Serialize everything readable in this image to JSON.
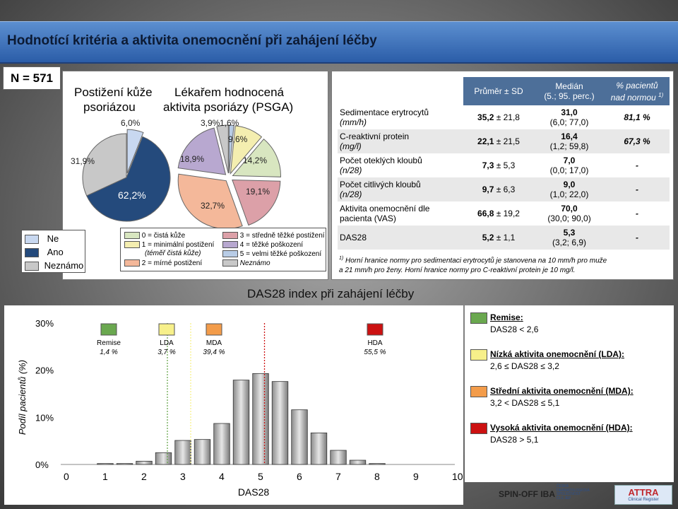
{
  "title": "Hodnotící kritéria a aktivita onemocnění při zahájení léčby",
  "n_label": "N = 571",
  "colors": {
    "ne": "#c8d8f0",
    "ano": "#244a7c",
    "nezname": "#c8c8c8",
    "p0": "#d8e6c0",
    "p1": "#f4eeb0",
    "p2": "#f4b89a",
    "p3": "#dca0a8",
    "p4": "#b8a8d0",
    "p5": "#b8cce6",
    "remise": "#6aa84f",
    "lda": "#f7f08a",
    "mda": "#f39c4a",
    "hda": "#cc1111"
  },
  "pie1": {
    "title_line1": "Postižení kůže",
    "title_line2": "psoriázou",
    "labels": [
      "6,0%",
      "62,2%",
      "31,9%"
    ]
  },
  "pie2": {
    "title_line1": "Lékařem hodnocená",
    "title_line2": "aktivita psoriázy (PSGA)",
    "labels": [
      "3,9%",
      "1,6%",
      "9,6%",
      "14,2%",
      "19,1%",
      "32,7%",
      "18,9%"
    ]
  },
  "legend1": [
    "Ne",
    "Ano",
    "Neznámo"
  ],
  "legend2": {
    "items": [
      "0 = čistá kůže",
      "1 = minimální postižení",
      "(téměř čistá kůže)",
      "2 = mírné postižení",
      "3 = středně těžké postižení",
      "4 = těžké poškození",
      "5 = velmi těžké poškození",
      "Neznámo"
    ]
  },
  "table": {
    "headers": [
      "Průměr ± SD",
      "Medián",
      "(5.; 95. perc.)",
      "% pacientů",
      "nad normou"
    ],
    "header_sup": "1)",
    "rows": [
      {
        "name": "Sedimentace erytrocytů",
        "unit": "(mm/h)",
        "mean": "35,2",
        "sd": "± 21,8",
        "median": "31,0",
        "perc": "(6,0; 77,0)",
        "pct": "81,1 %"
      },
      {
        "name": "C-reaktivní protein",
        "unit": "(mg/l)",
        "mean": "22,1",
        "sd": "± 21,5",
        "median": "16,4",
        "perc": "(1,2; 59,8)",
        "pct": "67,3 %"
      },
      {
        "name": "Počet oteklých kloubů",
        "unit": "(n/28)",
        "mean": "7,3",
        "sd": "± 5,3",
        "median": "7,0",
        "perc": "(0,0; 17,0)",
        "pct": "-"
      },
      {
        "name": "Počet citlivých kloubů",
        "unit": "(n/28)",
        "mean": "9,7",
        "sd": "± 6,3",
        "median": "9,0",
        "perc": "(1,0; 22,0)",
        "pct": "-"
      },
      {
        "name": "Aktivita onemocnění dle",
        "unit": "pacienta (VAS)",
        "mean": "66,8",
        "sd": "± 19,2",
        "median": "70,0",
        "perc": "(30,0; 90,0)",
        "pct": "-"
      },
      {
        "name": "DAS28",
        "unit": "",
        "mean": "5,2",
        "sd": "± 1,1",
        "median": "5,3",
        "perc": "(3,2; 6,9)",
        "pct": "-"
      }
    ],
    "footnote_sup": "1)",
    "footnote_line1": "Horní hranice normy pro sedimentaci erytrocytů je stanovena na 10 mm/h pro muže",
    "footnote_line2": "a 21 mm/h pro ženy. Horní hranice normy pro C-reaktivní protein je 10 mg/l."
  },
  "hist": {
    "title": "DAS28 index při zahájení léčby",
    "ylabel": "Podíl pacientů (%)",
    "xlabel": "DAS28",
    "yticks": [
      "30%",
      "20%",
      "10%",
      "0%"
    ],
    "xticks": [
      "0",
      "1",
      "2",
      "3",
      "4",
      "5",
      "6",
      "7",
      "8",
      "9",
      "10"
    ],
    "markers": [
      {
        "label": "Remise",
        "pct": "1,4 %"
      },
      {
        "label": "LDA",
        "pct": "3,7 %"
      },
      {
        "label": "MDA",
        "pct": "39,4 %"
      },
      {
        "label": "HDA",
        "pct": "55,5 %"
      }
    ]
  },
  "right_legend": [
    {
      "title": "Remise",
      "suffix": ":",
      "desc": "DAS28 < 2,6"
    },
    {
      "title": "Nízká aktivita onemocnění (LDA)",
      "suffix": ":",
      "desc": "2,6 ≤ DAS28 ≤ 3,2"
    },
    {
      "title": "Střední aktivita onemocnění (MDA)",
      "suffix": ":",
      "desc": "3,2 < DAS28 ≤ 5,1"
    },
    {
      "title": "Vysoká aktivita onemocnění (HDA)",
      "suffix": ":",
      "desc": "DAS28 > 5,1"
    }
  ],
  "logos": {
    "spinoff": "SPIN-OFF IBA",
    "csds_line1": "ČESKÁ",
    "csds_line2": "DERMATOLOGICKÁ",
    "csds_line3": "SPOLEČNOST",
    "csds_line4": "ČLS JEP",
    "attra_line1": "ATTRA",
    "attra_line2": "Clinical Register"
  },
  "chart_data": [
    {
      "type": "pie",
      "title": "Postižení kůže psoriázou",
      "categories": [
        "Ne",
        "Ano",
        "Neznámo"
      ],
      "values": [
        6.0,
        62.2,
        31.9
      ],
      "legend": "bottom-left"
    },
    {
      "type": "pie",
      "title": "Lékařem hodnocená aktivita psoriázy (PSGA)",
      "categories": [
        "Neznámo",
        "0 = čistá kůže",
        "1 = minimální postižení",
        "2 = mírné postižení",
        "3 = středně těžké postižení",
        "4 = těžké poškození",
        "5 = velmi těžké poškození"
      ],
      "values": [
        3.9,
        1.6,
        9.6,
        14.2,
        19.1,
        32.7,
        18.9
      ]
    },
    {
      "type": "table",
      "columns": [
        "",
        "Průměr ± SD",
        "Medián (5.; 95. perc.)",
        "% pacientů nad normou"
      ],
      "rows": [
        [
          "Sedimentace erytrocytů (mm/h)",
          "35,2 ± 21,8",
          "31,0 (6,0; 77,0)",
          "81,1 %"
        ],
        [
          "C-reaktivní protein (mg/l)",
          "22,1 ± 21,5",
          "16,4 (1,2; 59,8)",
          "67,3 %"
        ],
        [
          "Počet oteklých kloubů (n/28)",
          "7,3 ± 5,3",
          "7,0 (0,0; 17,0)",
          "-"
        ],
        [
          "Počet citlivých kloubů (n/28)",
          "9,7 ± 6,3",
          "9,0 (1,0; 22,0)",
          "-"
        ],
        [
          "Aktivita onemocnění dle pacienta (VAS)",
          "66,8 ± 19,2",
          "70,0 (30,0; 90,0)",
          "-"
        ],
        [
          "DAS28",
          "5,2 ± 1,1",
          "5,3 (3,2; 6,9)",
          "-"
        ]
      ]
    },
    {
      "type": "bar",
      "title": "DAS28 index při zahájení léčby",
      "xlabel": "DAS28",
      "ylabel": "Podíl pacientů (%)",
      "xlim": [
        0,
        10
      ],
      "ylim": [
        0,
        30
      ],
      "grid": false,
      "x": [
        1.0,
        1.5,
        2.0,
        2.5,
        3.0,
        3.5,
        4.0,
        4.5,
        5.0,
        5.5,
        6.0,
        6.5,
        7.0,
        7.5,
        8.0
      ],
      "values": [
        0.2,
        0.2,
        0.7,
        2.5,
        5.1,
        5.3,
        8.7,
        17.9,
        19.3,
        17.6,
        11.6,
        6.7,
        3.0,
        0.9,
        0.2
      ],
      "thresholds": [
        2.6,
        3.2,
        5.1
      ]
    }
  ]
}
